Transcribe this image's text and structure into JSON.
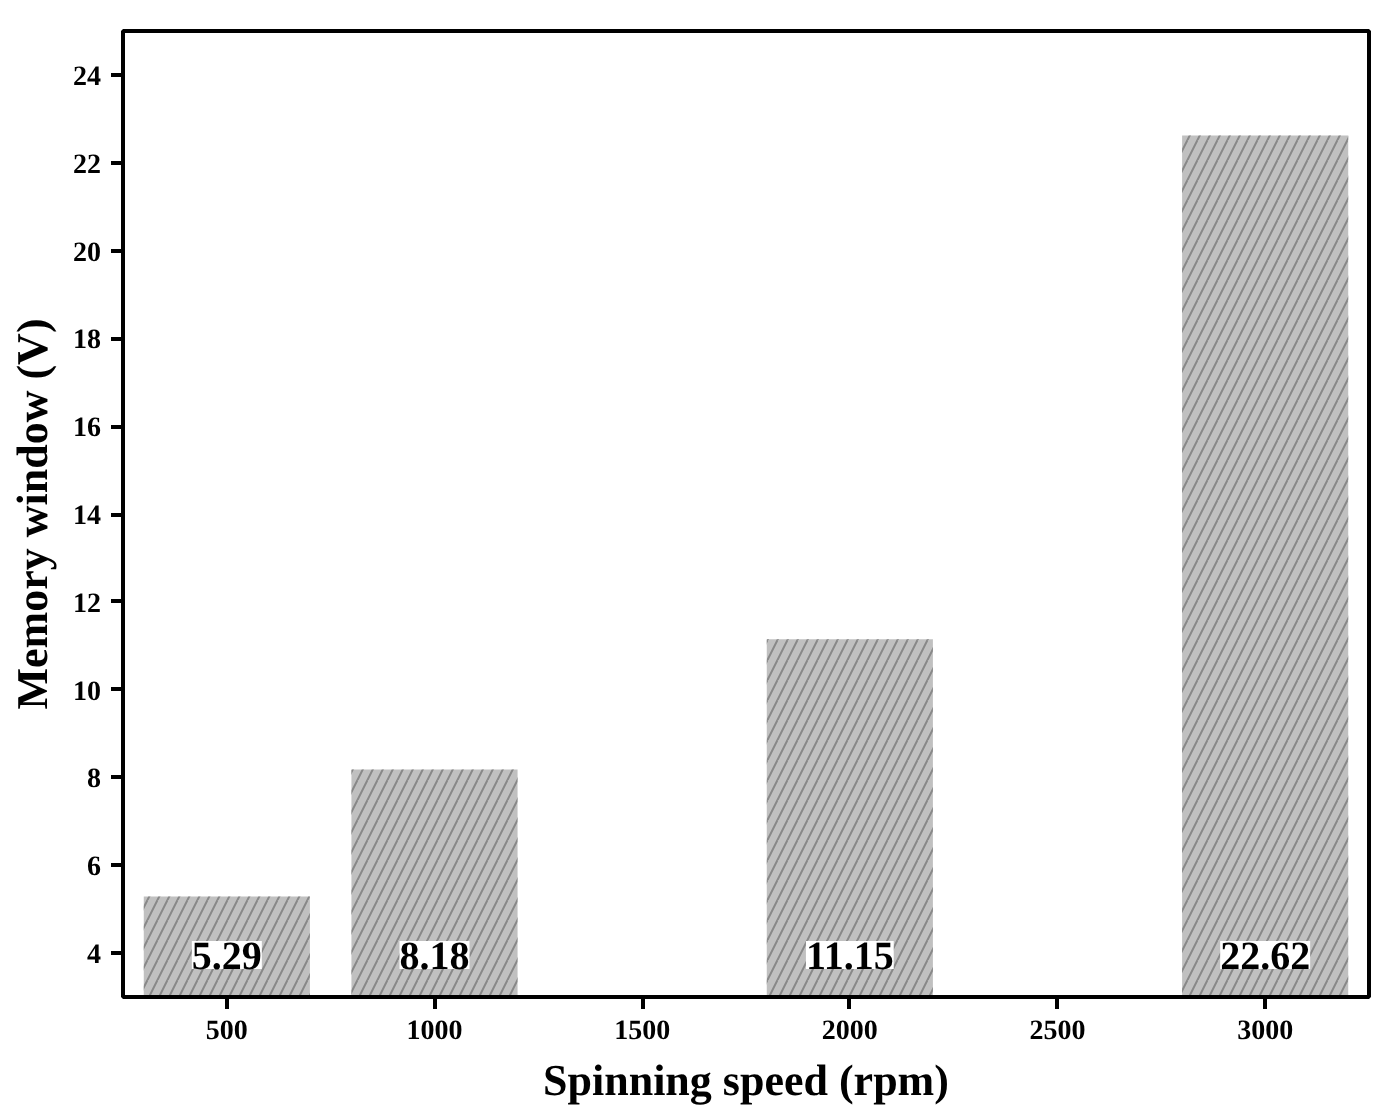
{
  "chart_data": {
    "type": "bar",
    "xlabel": "Spinning speed (rpm)",
    "ylabel": "Memory window (V)",
    "x": [
      500,
      1000,
      2000,
      3000
    ],
    "values": [
      5.29,
      8.18,
      11.15,
      22.62
    ],
    "color": "#c0c0c0",
    "data_labels": true,
    "xlim": [
      250,
      3250
    ],
    "xticks": [
      500,
      1000,
      1500,
      2000,
      2500,
      3000
    ],
    "ylim": [
      3,
      25
    ],
    "yticks": [
      4,
      6,
      8,
      10,
      12,
      14,
      16,
      18,
      20,
      22,
      24
    ],
    "grid": false
  }
}
